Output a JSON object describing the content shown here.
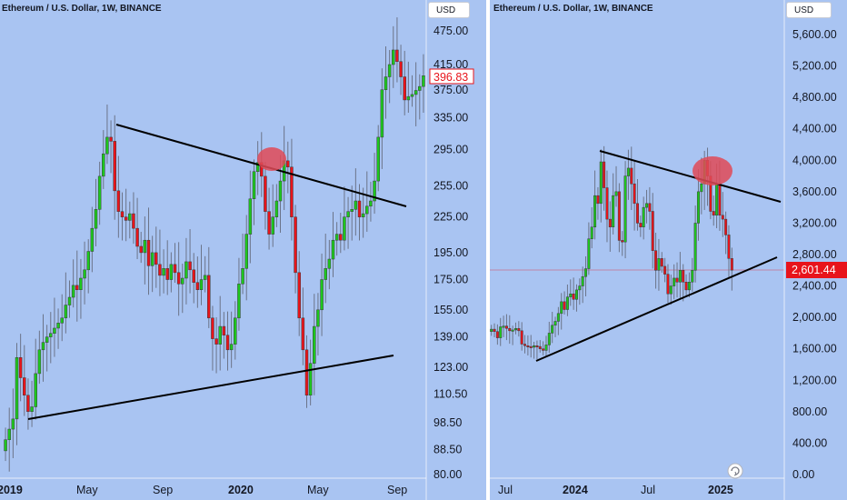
{
  "colors": {
    "background": "#a9c4f2",
    "up": "#1ec71e",
    "down": "#e8141b",
    "trendline": "#000000",
    "highlight": "#e04a57",
    "last_price_left": "#e8141b",
    "last_price_right": "#e8141b"
  },
  "left_chart": {
    "title": "Ethereum / U.S. Dollar, 1W, BINANCE",
    "currency": "USD",
    "last_price": "396.83",
    "y_ticks": [
      "475.00",
      "415.00",
      "375.00",
      "335.00",
      "295.00",
      "255.00",
      "225.00",
      "195.00",
      "175.00",
      "155.00",
      "139.00",
      "123.00",
      "110.50",
      "98.50",
      "88.50",
      "80.00"
    ],
    "x_ticks": [
      {
        "label": "2019",
        "bold": true
      },
      {
        "label": "May",
        "bold": false
      },
      {
        "label": "Sep",
        "bold": false
      },
      {
        "label": "2020",
        "bold": true
      },
      {
        "label": "May",
        "bold": false
      },
      {
        "label": "Sep",
        "bold": false
      }
    ]
  },
  "right_chart": {
    "title": "Ethereum / U.S. Dollar, 1W, BINANCE",
    "currency": "USD",
    "last_price": "2,601.44",
    "y_ticks": [
      "5,600.00",
      "5,200.00",
      "4,800.00",
      "4,400.00",
      "4,000.00",
      "3,600.00",
      "3,200.00",
      "2,800.00",
      "2,400.00",
      "2,000.00",
      "1,600.00",
      "1,200.00",
      "800.00",
      "400.00",
      "0.00"
    ],
    "x_ticks": [
      {
        "label": "Jul",
        "bold": false
      },
      {
        "label": "2024",
        "bold": true
      },
      {
        "label": "Jul",
        "bold": false
      },
      {
        "label": "2025",
        "bold": true
      }
    ]
  },
  "chart_data": [
    {
      "type": "candlestick",
      "title": "Ethereum / U.S. Dollar, 1W, BINANCE",
      "scale": "log",
      "ylim": [
        80,
        530
      ],
      "x_start": "2018-12-10",
      "period": "1W",
      "close": [
        92,
        96,
        100,
        128,
        118,
        110,
        103,
        105,
        120,
        132,
        136,
        139,
        141,
        144,
        147,
        150,
        158,
        163,
        171,
        168,
        176,
        182,
        196,
        215,
        232,
        265,
        290,
        310,
        305,
        250,
        230,
        225,
        222,
        228,
        215,
        200,
        195,
        205,
        185,
        195,
        186,
        178,
        183,
        175,
        186,
        180,
        172,
        176,
        188,
        182,
        173,
        168,
        175,
        178,
        150,
        138,
        135,
        145,
        140,
        132,
        135,
        150,
        172,
        183,
        210,
        242,
        270,
        280,
        265,
        230,
        210,
        225,
        240,
        260,
        282,
        275,
        225,
        180,
        150,
        132,
        110,
        125,
        145,
        155,
        175,
        183,
        190,
        205,
        210,
        205,
        225,
        230,
        232,
        240,
        225,
        228,
        235,
        240,
        260,
        310,
        375,
        395,
        415,
        440,
        420,
        395,
        360,
        365,
        368,
        374,
        380,
        396.83
      ]
    },
    {
      "type": "candlestick",
      "title": "Ethereum / U.S. Dollar, 1W, BINANCE",
      "scale": "linear",
      "ylim": [
        0,
        5800
      ],
      "x_start": "2023-05-15",
      "period": "1W",
      "close": [
        1850,
        1820,
        1740,
        1880,
        1890,
        1860,
        1830,
        1840,
        1860,
        1830,
        1660,
        1640,
        1630,
        1620,
        1640,
        1630,
        1600,
        1580,
        1650,
        1800,
        1900,
        1950,
        2050,
        2200,
        2100,
        2260,
        2300,
        2230,
        2350,
        2400,
        2520,
        2620,
        3000,
        3150,
        3550,
        3450,
        3980,
        3650,
        3250,
        3150,
        3550,
        3600,
        2980,
        2960,
        3800,
        3900,
        3700,
        3450,
        3200,
        3150,
        3400,
        3450,
        3350,
        2850,
        2600,
        2750,
        2650,
        2550,
        2300,
        2400,
        2500,
        2450,
        2600,
        2450,
        2350,
        2450,
        2600,
        3200,
        3600,
        3700,
        4000,
        3800,
        3350,
        3300,
        3700,
        3300,
        3250,
        3050,
        2750,
        2601.44
      ]
    }
  ]
}
